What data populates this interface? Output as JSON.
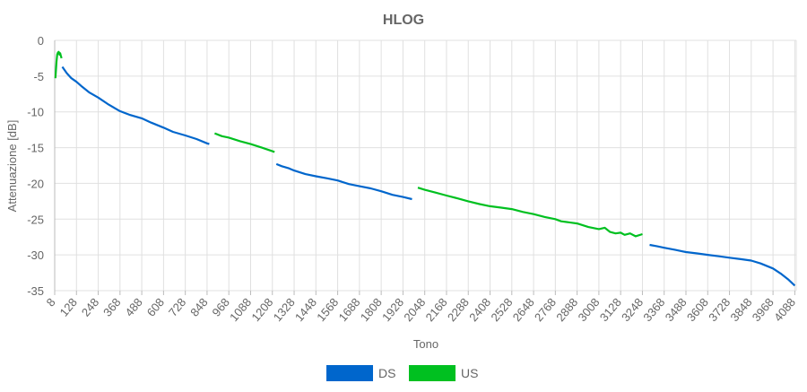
{
  "chart_data": {
    "type": "line",
    "title": "HLOG",
    "xlabel": "Tono",
    "ylabel": "Attenuazione [dB]",
    "xlim": [
      8,
      4096
    ],
    "ylim": [
      -35,
      0
    ],
    "x_ticks": [
      "8",
      "128",
      "248",
      "368",
      "488",
      "608",
      "728",
      "848",
      "968",
      "1088",
      "1208",
      "1328",
      "1448",
      "1568",
      "1688",
      "1808",
      "1928",
      "2048",
      "2168",
      "2288",
      "2408",
      "2528",
      "2648",
      "2768",
      "2888",
      "3008",
      "3128",
      "3248",
      "3368",
      "3488",
      "3608",
      "3728",
      "3848",
      "3968",
      "4088"
    ],
    "y_ticks": [
      "0",
      "-5",
      "-10",
      "-15",
      "-20",
      "-25",
      "-30",
      "-35"
    ],
    "grid": true,
    "legend_position": "bottom",
    "series": [
      {
        "name": "DS",
        "color": "#0066cc",
        "segments": [
          [
            [
              50,
              -3.7
            ],
            [
              75,
              -4.6
            ],
            [
              100,
              -5.3
            ],
            [
              128,
              -5.8
            ],
            [
              160,
              -6.5
            ],
            [
              200,
              -7.3
            ],
            [
              248,
              -8.0
            ],
            [
              300,
              -8.9
            ],
            [
              340,
              -9.5
            ],
            [
              368,
              -9.9
            ],
            [
              420,
              -10.4
            ],
            [
              488,
              -10.9
            ],
            [
              540,
              -11.5
            ],
            [
              608,
              -12.2
            ],
            [
              660,
              -12.8
            ],
            [
              728,
              -13.3
            ],
            [
              790,
              -13.8
            ],
            [
              848,
              -14.4
            ],
            [
              860,
              -14.5
            ]
          ],
          [
            [
              1230,
              -17.3
            ],
            [
              1260,
              -17.6
            ],
            [
              1300,
              -17.9
            ],
            [
              1328,
              -18.2
            ],
            [
              1390,
              -18.7
            ],
            [
              1448,
              -19.0
            ],
            [
              1510,
              -19.3
            ],
            [
              1568,
              -19.6
            ],
            [
              1630,
              -20.1
            ],
            [
              1688,
              -20.4
            ],
            [
              1750,
              -20.7
            ],
            [
              1808,
              -21.1
            ],
            [
              1870,
              -21.6
            ],
            [
              1928,
              -21.9
            ],
            [
              1978,
              -22.2
            ]
          ],
          [
            [
              3288,
              -28.6
            ],
            [
              3330,
              -28.8
            ],
            [
              3368,
              -29.0
            ],
            [
              3430,
              -29.3
            ],
            [
              3488,
              -29.6
            ],
            [
              3550,
              -29.8
            ],
            [
              3608,
              -30.0
            ],
            [
              3670,
              -30.2
            ],
            [
              3728,
              -30.4
            ],
            [
              3790,
              -30.6
            ],
            [
              3848,
              -30.8
            ],
            [
              3900,
              -31.2
            ],
            [
              3968,
              -31.9
            ],
            [
              4010,
              -32.6
            ],
            [
              4050,
              -33.4
            ],
            [
              4088,
              -34.3
            ]
          ]
        ]
      },
      {
        "name": "US",
        "color": "#00c020",
        "segments": [
          [
            [
              12,
              -5.3
            ],
            [
              18,
              -3.0
            ],
            [
              22,
              -2.0
            ],
            [
              26,
              -1.7
            ],
            [
              30,
              -1.6
            ],
            [
              34,
              -2.0
            ],
            [
              38,
              -1.8
            ],
            [
              42,
              -2.2
            ],
            [
              46,
              -2.5
            ]
          ],
          [
            [
              890,
              -13.0
            ],
            [
              930,
              -13.4
            ],
            [
              968,
              -13.6
            ],
            [
              1030,
              -14.1
            ],
            [
              1088,
              -14.5
            ],
            [
              1150,
              -15.0
            ],
            [
              1208,
              -15.5
            ],
            [
              1220,
              -15.6
            ]
          ],
          [
            [
              2010,
              -20.6
            ],
            [
              2048,
              -20.9
            ],
            [
              2110,
              -21.3
            ],
            [
              2168,
              -21.7
            ],
            [
              2230,
              -22.1
            ],
            [
              2288,
              -22.5
            ],
            [
              2350,
              -22.9
            ],
            [
              2408,
              -23.2
            ],
            [
              2470,
              -23.4
            ],
            [
              2528,
              -23.6
            ],
            [
              2590,
              -24.0
            ],
            [
              2648,
              -24.3
            ],
            [
              2710,
              -24.7
            ],
            [
              2768,
              -25.0
            ],
            [
              2800,
              -25.3
            ],
            [
              2830,
              -25.4
            ],
            [
              2888,
              -25.6
            ],
            [
              2950,
              -26.1
            ],
            [
              3008,
              -26.4
            ],
            [
              3040,
              -26.2
            ],
            [
              3070,
              -26.8
            ],
            [
              3100,
              -27.0
            ],
            [
              3128,
              -26.9
            ],
            [
              3150,
              -27.2
            ],
            [
              3180,
              -27.0
            ],
            [
              3210,
              -27.4
            ],
            [
              3248,
              -27.1
            ]
          ]
        ]
      }
    ]
  }
}
